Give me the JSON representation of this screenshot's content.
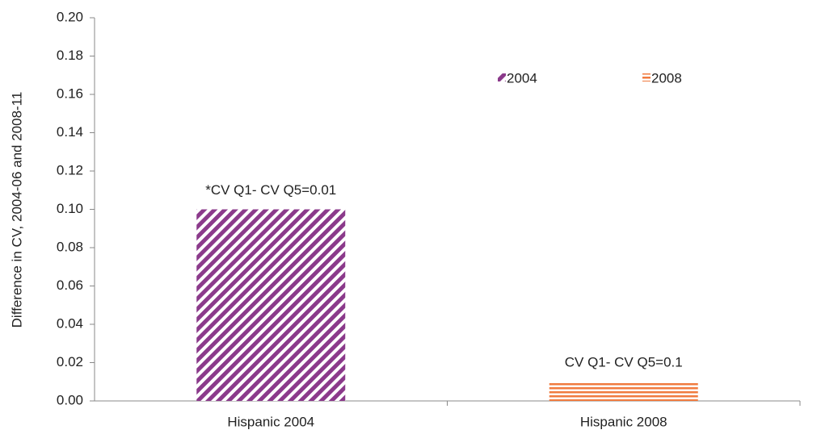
{
  "chart_data": {
    "type": "bar",
    "y_label": "Difference in CV, 2004-06 and 2008-11",
    "categories": [
      "Hispanic 2004",
      "Hispanic 2008"
    ],
    "series": [
      {
        "name": "2004",
        "color": "#8b3a8b",
        "pattern": "diagonal",
        "values": [
          0.1,
          null
        ]
      },
      {
        "name": "2008",
        "color": "#f07b3f",
        "pattern": "horizontal",
        "values": [
          null,
          0.01
        ]
      }
    ],
    "annotations": [
      "*CV Q1- CV Q5=0.01",
      "CV Q1- CV Q5=0.1"
    ],
    "ylim": [
      0,
      0.2
    ],
    "yticks": [
      {
        "value": 0,
        "label": "0.00"
      },
      {
        "value": 0.02,
        "label": "0.02"
      },
      {
        "value": 0.04,
        "label": "0.04"
      },
      {
        "value": 0.06,
        "label": "0.06"
      },
      {
        "value": 0.08,
        "label": "0.08"
      },
      {
        "value": 0.1,
        "label": "0.10"
      },
      {
        "value": 0.12,
        "label": "0.12"
      },
      {
        "value": 0.14,
        "label": "0.14"
      },
      {
        "value": 0.16,
        "label": "0.16"
      },
      {
        "value": 0.18,
        "label": "0.18"
      },
      {
        "value": 0.2,
        "label": "0.20"
      }
    ],
    "grid": false,
    "legend": "top-right"
  }
}
